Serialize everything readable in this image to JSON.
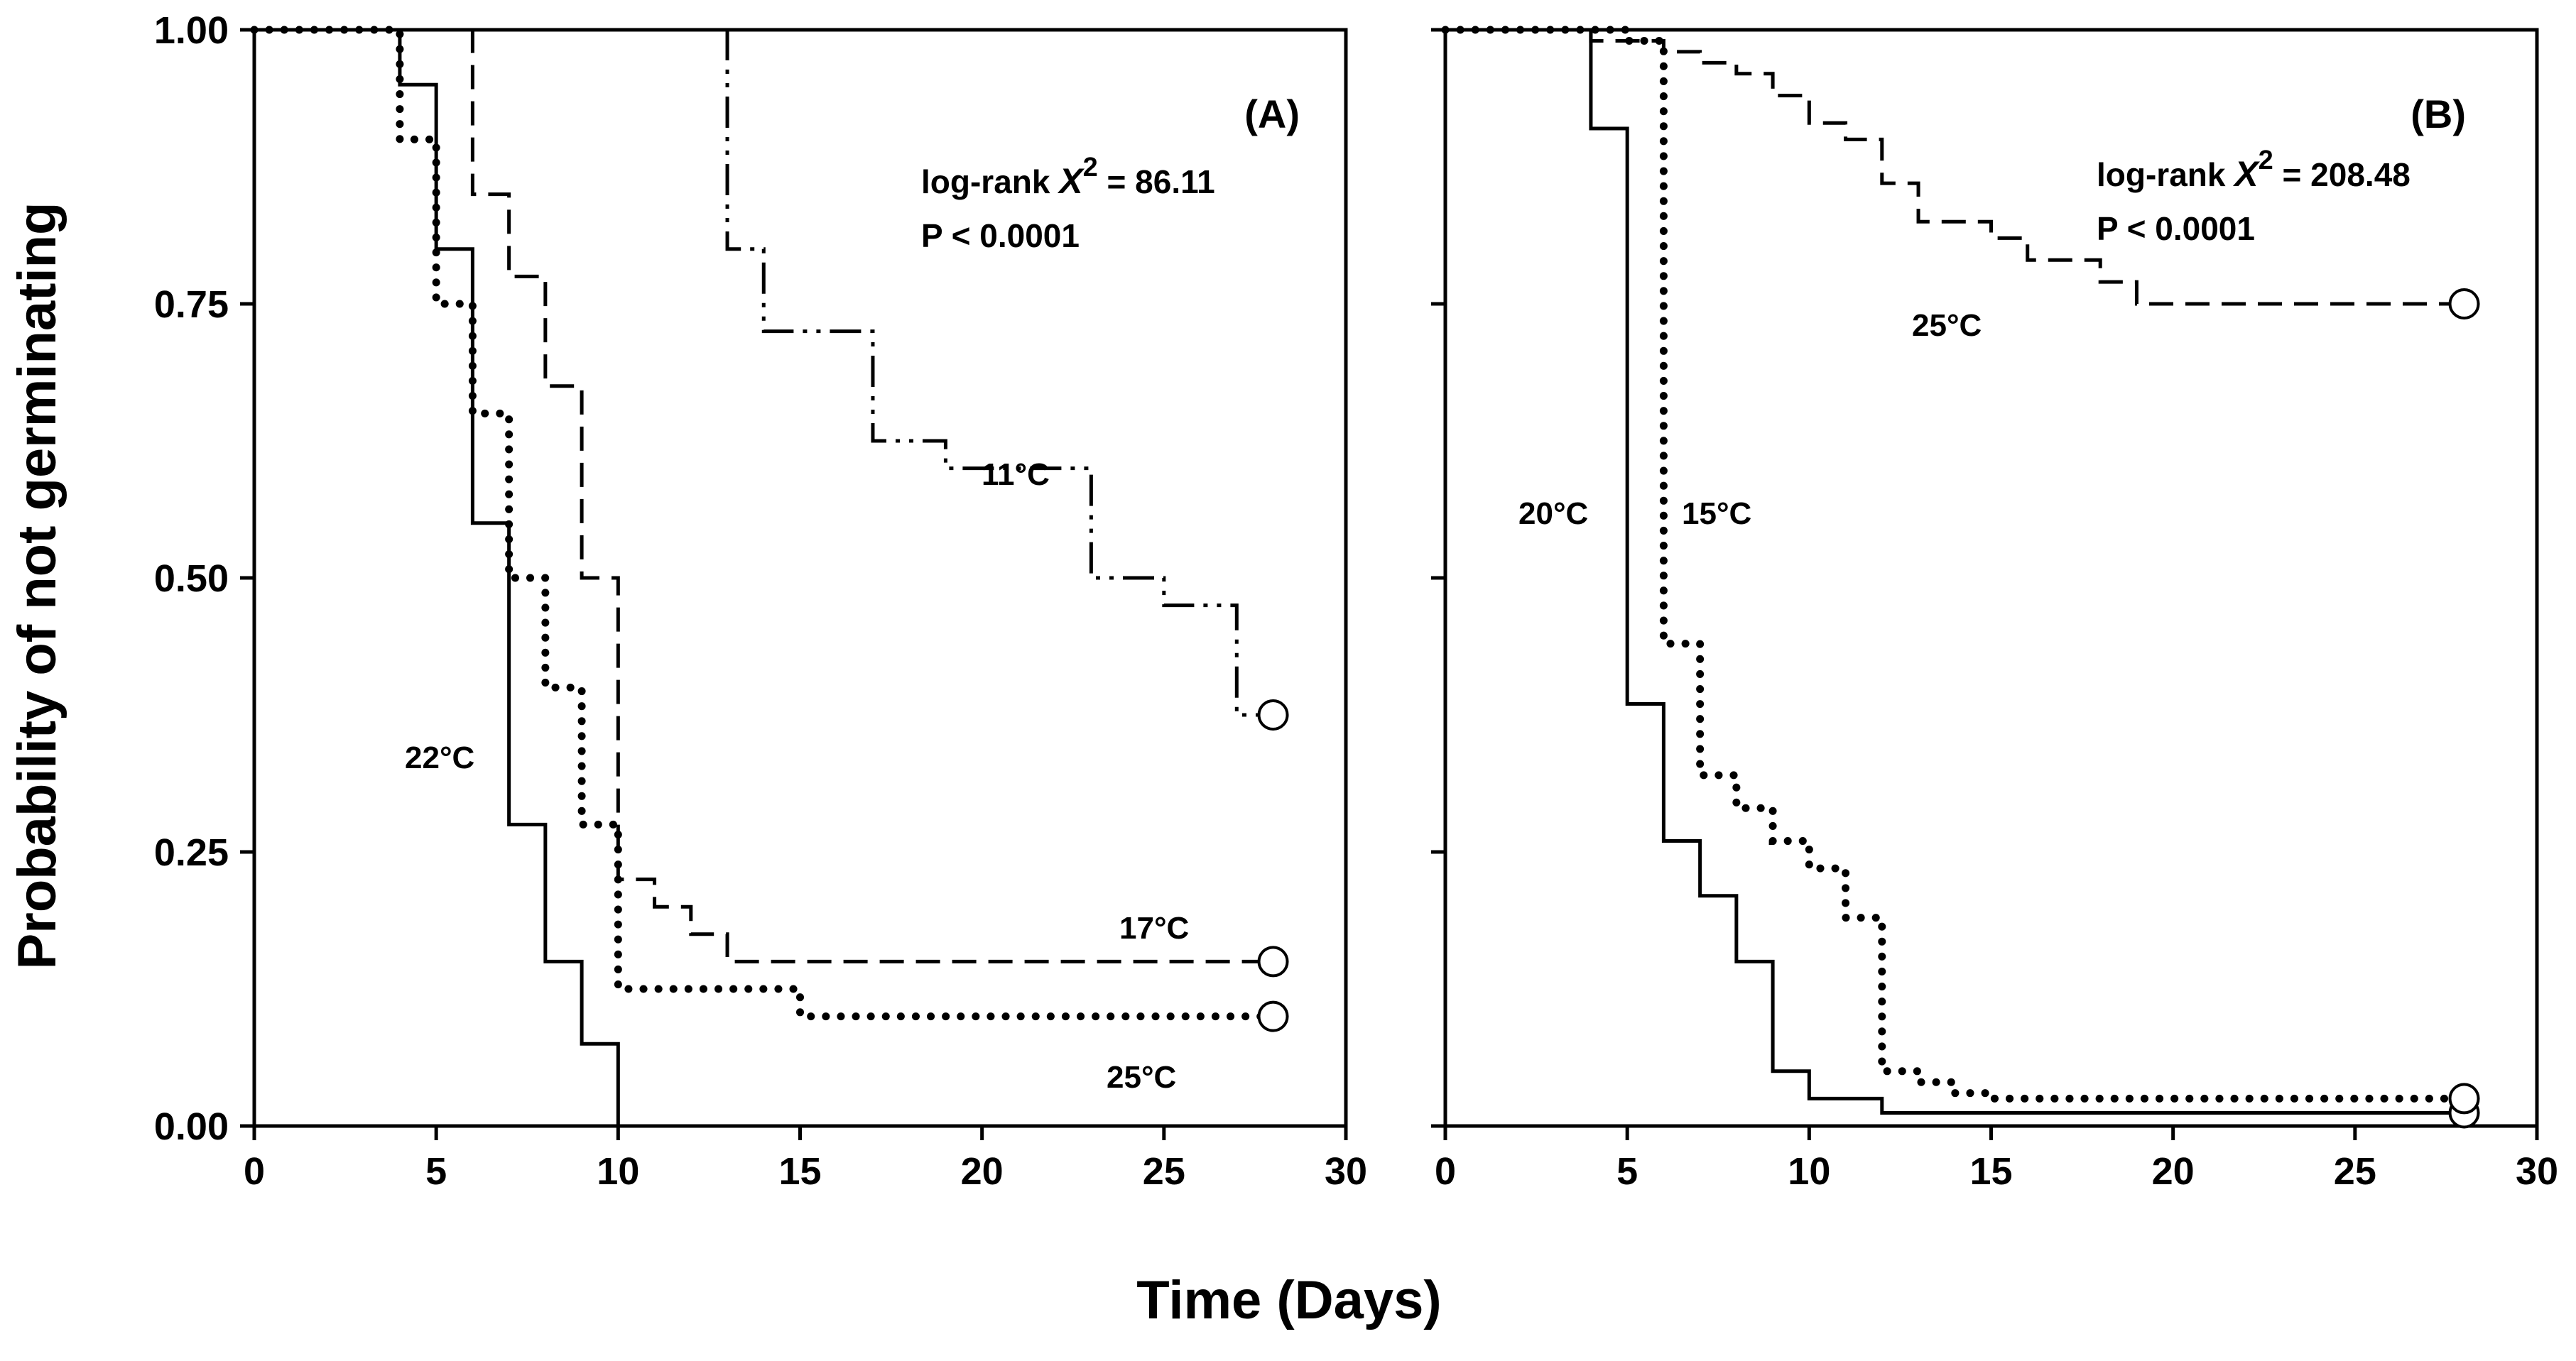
{
  "chart_data": {
    "type": "line",
    "subtype": "kaplan-meier step survival curves",
    "xlabel": "Time (Days)",
    "ylabel": "Probability of not germinating",
    "panels": [
      {
        "id": "A",
        "panel_label": "(A)",
        "stat": {
          "prefix": "log-rank ",
          "symbol": "X",
          "exponent": "2",
          "value_text": " = 86.11",
          "p_text": "P < 0.0001"
        },
        "xlim": [
          0,
          30
        ],
        "ylim": [
          0,
          1
        ],
        "xticks": [
          "0",
          "5",
          "10",
          "15",
          "20",
          "25",
          "30"
        ],
        "yticks": [
          "0.00",
          "0.25",
          "0.50",
          "0.75",
          "1.00"
        ],
        "series": [
          {
            "name": "11°C",
            "label": "11°C",
            "style": "dash-dot-dot",
            "censor": true,
            "points": [
              [
                0,
                1
              ],
              [
                13,
                0.8
              ],
              [
                14,
                0.725
              ],
              [
                17,
                0.625
              ],
              [
                19,
                0.6
              ],
              [
                23,
                0.5
              ],
              [
                25,
                0.475
              ],
              [
                27,
                0.375
              ],
              [
                28,
                0.375
              ]
            ]
          },
          {
            "name": "17°C",
            "label": "17°C",
            "style": "dash",
            "censor": true,
            "points": [
              [
                0,
                1
              ],
              [
                6,
                0.85
              ],
              [
                7,
                0.775
              ],
              [
                8,
                0.675
              ],
              [
                9,
                0.5
              ],
              [
                10,
                0.225
              ],
              [
                11,
                0.2
              ],
              [
                12,
                0.175
              ],
              [
                13,
                0.15
              ],
              [
                28,
                0.15
              ]
            ]
          },
          {
            "name": "25°C",
            "label": "25°C",
            "style": "dot",
            "censor": true,
            "points": [
              [
                0,
                1
              ],
              [
                4,
                0.9
              ],
              [
                5,
                0.75
              ],
              [
                6,
                0.65
              ],
              [
                7,
                0.5
              ],
              [
                8,
                0.4
              ],
              [
                9,
                0.275
              ],
              [
                10,
                0.125
              ],
              [
                15,
                0.1
              ],
              [
                28,
                0.1
              ]
            ]
          },
          {
            "name": "22°C",
            "label": "22°C",
            "style": "solid",
            "censor": false,
            "points": [
              [
                0,
                1
              ],
              [
                4,
                0.95
              ],
              [
                5,
                0.8
              ],
              [
                6,
                0.55
              ],
              [
                7,
                0.275
              ],
              [
                8,
                0.15
              ],
              [
                9,
                0.075
              ],
              [
                10,
                0
              ]
            ]
          }
        ]
      },
      {
        "id": "B",
        "panel_label": "(B)",
        "stat": {
          "prefix": "log-rank ",
          "symbol": "X",
          "exponent": "2",
          "value_text": " = 208.48",
          "p_text": "P < 0.0001"
        },
        "xlim": [
          0,
          30
        ],
        "ylim": [
          0,
          1
        ],
        "xticks": [
          "0",
          "5",
          "10",
          "15",
          "20",
          "25",
          "30"
        ],
        "yticks": [],
        "series": [
          {
            "name": "25°C",
            "label": "25°C",
            "style": "dash",
            "censor": true,
            "points": [
              [
                0,
                1
              ],
              [
                4,
                0.99
              ],
              [
                6,
                0.98
              ],
              [
                7,
                0.97
              ],
              [
                8,
                0.96
              ],
              [
                9,
                0.94
              ],
              [
                10,
                0.915
              ],
              [
                11,
                0.9
              ],
              [
                12,
                0.86
              ],
              [
                13,
                0.825
              ],
              [
                15,
                0.81
              ],
              [
                16,
                0.79
              ],
              [
                18,
                0.77
              ],
              [
                19,
                0.75
              ],
              [
                28,
                0.75
              ]
            ]
          },
          {
            "name": "20°C",
            "label": "20°C",
            "style": "solid",
            "censor": true,
            "points": [
              [
                0,
                1
              ],
              [
                4,
                0.91
              ],
              [
                5,
                0.385
              ],
              [
                6,
                0.26
              ],
              [
                7,
                0.21
              ],
              [
                8,
                0.15
              ],
              [
                9,
                0.05
              ],
              [
                10,
                0.025
              ],
              [
                12,
                0.012
              ],
              [
                28,
                0.012
              ]
            ]
          },
          {
            "name": "15°C",
            "label": "15°C",
            "style": "dot",
            "censor": true,
            "points": [
              [
                0,
                1
              ],
              [
                5,
                0.99
              ],
              [
                6,
                0.44
              ],
              [
                7,
                0.32
              ],
              [
                8,
                0.29
              ],
              [
                9,
                0.26
              ],
              [
                10,
                0.235
              ],
              [
                11,
                0.19
              ],
              [
                12,
                0.05
              ],
              [
                13,
                0.04
              ],
              [
                14,
                0.03
              ],
              [
                15,
                0.025
              ],
              [
                28,
                0.025
              ]
            ]
          }
        ]
      }
    ]
  }
}
